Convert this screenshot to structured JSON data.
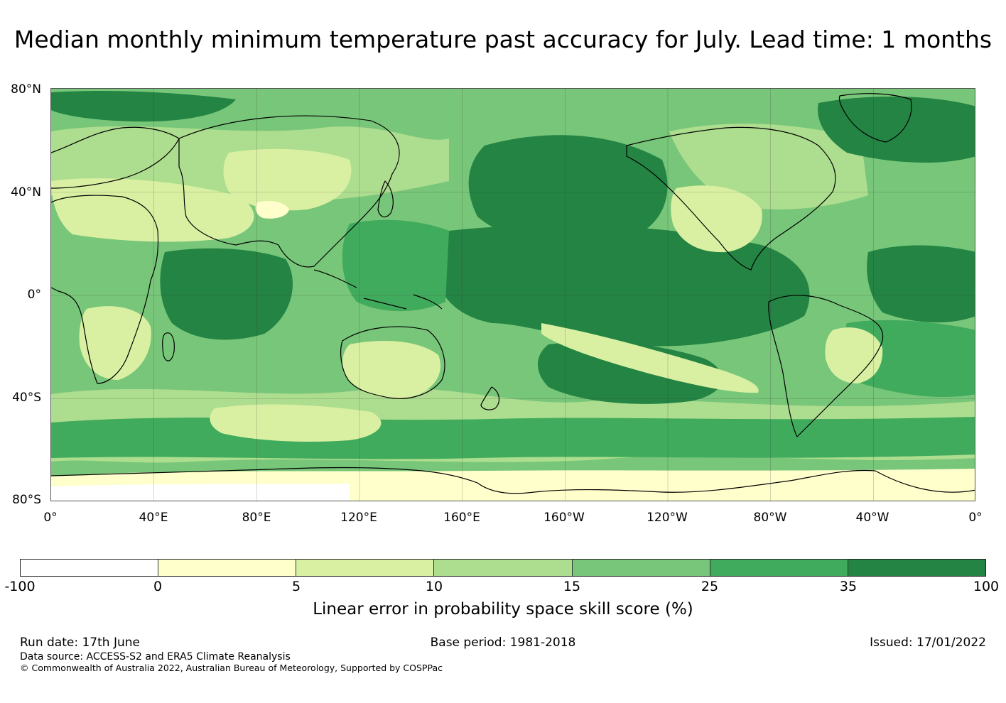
{
  "title": "Median monthly minimum temperature past accuracy for July. Lead time: 1 months",
  "map": {
    "latitude_labels": [
      "80°N",
      "40°N",
      "0°",
      "40°S",
      "80°S"
    ],
    "longitude_labels": [
      "0°",
      "40°E",
      "80°E",
      "120°E",
      "160°E",
      "160°W",
      "120°W",
      "80°W",
      "40°W",
      "0°"
    ],
    "projection": "equirectangular, 0° to 360° longitude, 80°S to 80°N",
    "gridlines": true
  },
  "colorbar": {
    "label": "Linear error in probability space skill score (%)",
    "ticks": [
      "-100",
      "0",
      "5",
      "10",
      "15",
      "25",
      "35",
      "100"
    ],
    "colors": [
      "#ffffff",
      "#ffffcc",
      "#d9f0a3",
      "#addd8e",
      "#78c679",
      "#41ab5d",
      "#238443"
    ]
  },
  "footer": {
    "run_date": "Run date: 17th June",
    "base_period": "Base period: 1981-2018",
    "issued": "Issued: 17/01/2022",
    "data_source": "Data source: ACCESS-S2 and ERA5 Climate Reanalysis",
    "copyright": "© Commonwealth of Australia 2022, Australian Bureau of Meteorology, Supported by COSPPac"
  }
}
